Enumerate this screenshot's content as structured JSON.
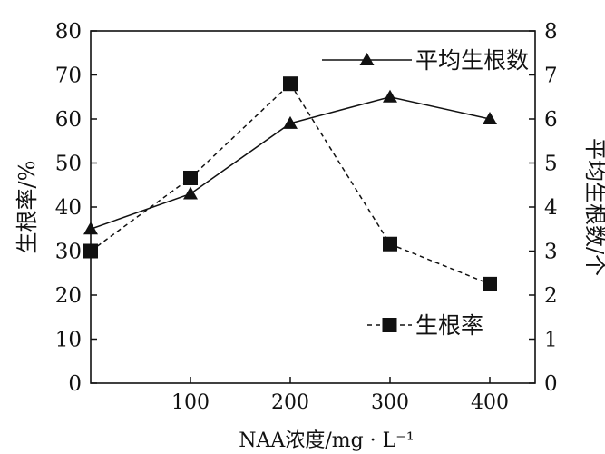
{
  "chart_data": {
    "type": "line",
    "xlabel": "NAA浓度/mg · L⁻¹",
    "ylabel_left": "生根率/%",
    "ylabel_right": "平均生根数/个",
    "x": [
      0,
      100,
      200,
      300,
      400
    ],
    "x_tick_labels": [
      "100",
      "200",
      "300",
      "400"
    ],
    "x_ticks": [
      100,
      200,
      300,
      400
    ],
    "xlim": [
      0,
      450
    ],
    "ylim_left": [
      0,
      80
    ],
    "ylim_right": [
      0,
      8
    ],
    "y_ticks_left": [
      "0",
      "10",
      "20",
      "30",
      "40",
      "50",
      "60",
      "70",
      "80"
    ],
    "y_ticks_right": [
      "0",
      "1",
      "2",
      "3",
      "4",
      "5",
      "6",
      "7",
      "8"
    ],
    "grid": false,
    "series": [
      {
        "name": "平均生根数",
        "axis": "right",
        "marker": "triangle",
        "line": "solid",
        "values": [
          3.5,
          4.3,
          5.9,
          6.5,
          6.0
        ]
      },
      {
        "name": "生根率",
        "axis": "left",
        "marker": "square",
        "line": "dashed",
        "values": [
          30.0,
          46.6,
          68.0,
          31.6,
          22.5
        ]
      }
    ],
    "legend": [
      "top-right",
      "bottom-right"
    ],
    "color": "#111111"
  }
}
